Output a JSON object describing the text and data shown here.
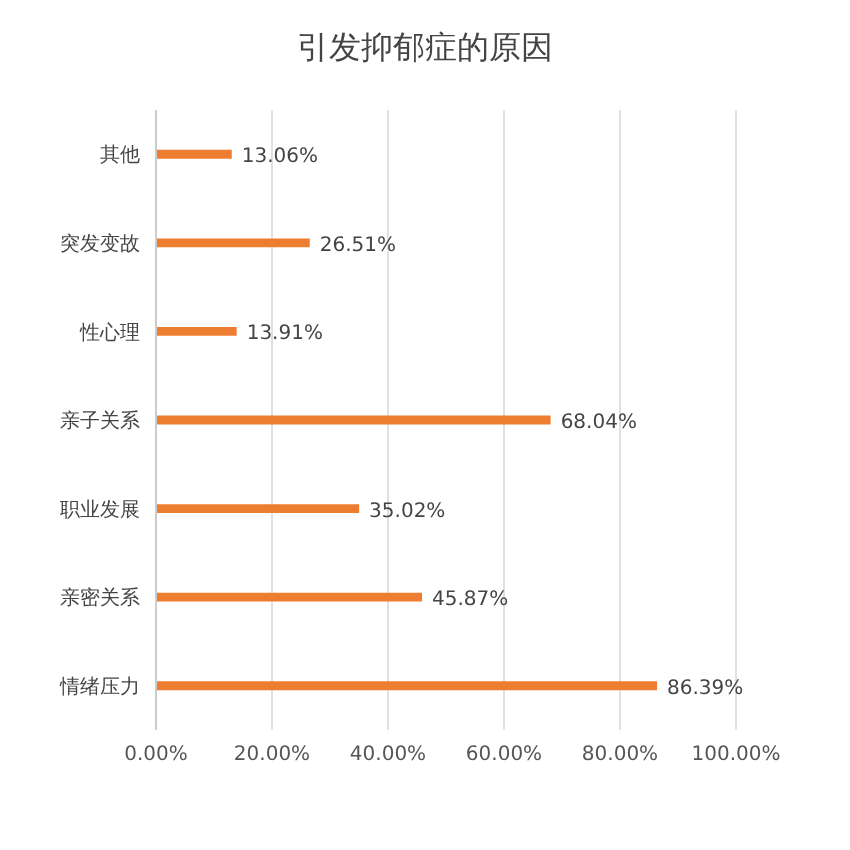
{
  "chart_data": {
    "type": "bar",
    "orientation": "horizontal",
    "title": "引发抑郁症的原因",
    "categories": [
      "其他",
      "突发变故",
      "性心理",
      "亲子关系",
      "职业发展",
      "亲密关系",
      "情绪压力"
    ],
    "values": [
      13.06,
      26.51,
      13.91,
      68.04,
      35.02,
      45.87,
      86.39
    ],
    "value_labels": [
      "13.06%",
      "26.51%",
      "13.91%",
      "68.04%",
      "35.02%",
      "45.87%",
      "86.39%"
    ],
    "color": "#ed7d31",
    "xlim": [
      0,
      100
    ],
    "xticks": [
      {
        "value": 0,
        "label": "0.00%"
      },
      {
        "value": 20,
        "label": "20.00%"
      },
      {
        "value": 40,
        "label": "40.00%"
      },
      {
        "value": 60,
        "label": "60.00%"
      },
      {
        "value": 80,
        "label": "80.00%"
      },
      {
        "value": 100,
        "label": "100.00%"
      }
    ],
    "grid": "x"
  }
}
